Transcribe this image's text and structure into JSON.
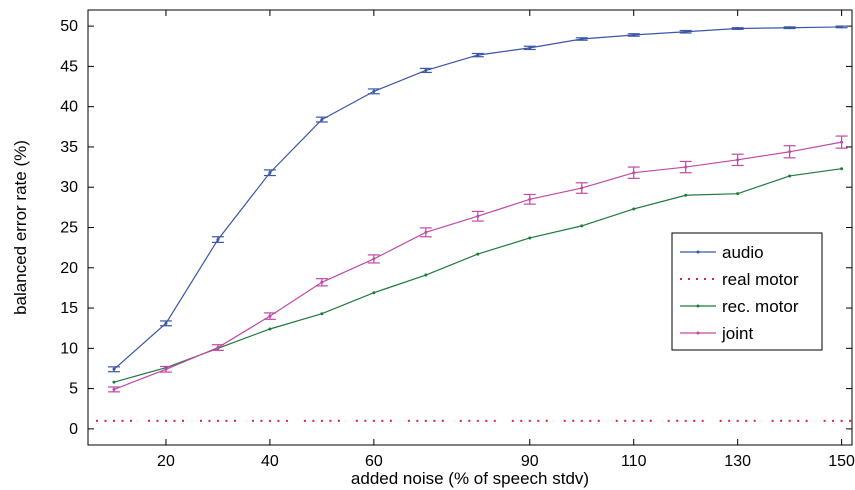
{
  "chart_data": {
    "type": "line",
    "title": "",
    "xlabel": "added noise (% of speech stdv)",
    "ylabel": "balanced error rate (%)",
    "x": [
      10,
      20,
      30,
      40,
      50,
      60,
      70,
      80,
      90,
      100,
      110,
      120,
      130,
      140,
      150
    ],
    "xlim": [
      5,
      152
    ],
    "ylim": [
      -2,
      52
    ],
    "xticks": [
      20,
      40,
      60,
      90,
      110,
      130,
      150
    ],
    "xtick_positions": [
      20,
      40,
      60,
      90,
      110,
      130,
      150
    ],
    "xtick_labels": [
      "20",
      "40",
      "60",
      "90",
      "110",
      "130",
      "150"
    ],
    "yticks": [
      0,
      5,
      10,
      15,
      20,
      25,
      30,
      35,
      40,
      45,
      50
    ],
    "grid": false,
    "legend_position": "right",
    "series": [
      {
        "name": "audio",
        "color": "#3a56a6",
        "values": [
          7.4,
          13.1,
          23.5,
          31.8,
          38.4,
          41.9,
          44.5,
          46.4,
          47.3,
          48.4,
          48.9,
          49.3,
          49.7,
          49.8,
          49.9
        ],
        "error": [
          0.3,
          0.3,
          0.35,
          0.35,
          0.3,
          0.3,
          0.25,
          0.2,
          0.2,
          0.15,
          0.15,
          0.15,
          0.1,
          0.1,
          0.1
        ]
      },
      {
        "name": "real motor",
        "color": "#e0203a",
        "style": "dotted",
        "values": [
          1.0,
          1.0,
          1.0,
          1.0,
          1.0,
          1.0,
          1.0,
          1.0,
          1.0,
          1.0,
          1.0,
          1.0,
          1.0,
          1.0,
          1.0
        ]
      },
      {
        "name": "rec. motor",
        "color": "#1f7a3c",
        "values": [
          5.8,
          7.6,
          10.0,
          12.4,
          14.3,
          16.9,
          19.1,
          21.7,
          23.7,
          25.2,
          27.3,
          29.0,
          29.2,
          31.4,
          32.3
        ]
      },
      {
        "name": "joint",
        "color": "#c149a8",
        "values": [
          4.9,
          7.4,
          10.1,
          14.0,
          18.2,
          21.1,
          24.4,
          26.4,
          28.5,
          29.9,
          31.8,
          32.5,
          33.4,
          34.4,
          35.6
        ],
        "error": [
          0.3,
          0.35,
          0.35,
          0.4,
          0.45,
          0.5,
          0.55,
          0.6,
          0.6,
          0.65,
          0.7,
          0.7,
          0.7,
          0.75,
          0.75
        ]
      }
    ]
  }
}
